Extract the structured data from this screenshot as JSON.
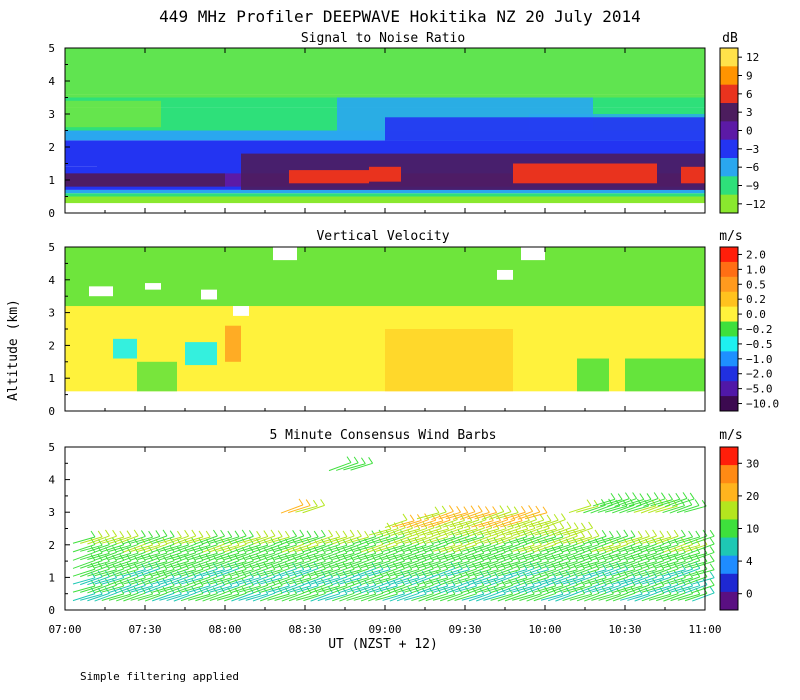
{
  "title": "449 MHz Profiler DEEPWAVE Hokitika NZ 20 July 2014",
  "ylabel": "Altitude (km)",
  "xlabel": "UT  (NZST + 12)",
  "footnote": "Simple filtering applied",
  "colors": {
    "panel_background": "#ffffff",
    "axis": "#000000"
  },
  "chart_data": [
    {
      "type": "heatmap",
      "title": "Signal to Noise Ratio",
      "units": "dB",
      "x_ticks": [
        "07:00",
        "07:30",
        "08:00",
        "08:30",
        "09:00",
        "09:30",
        "10:00",
        "10:30",
        "11:00"
      ],
      "y_ticks": [
        0,
        1,
        2,
        3,
        4,
        5
      ],
      "xlim_hours": [
        7,
        11
      ],
      "ylim_km": [
        0,
        5
      ],
      "colorbar": {
        "labels": [
          "12",
          "9",
          "6",
          "3",
          "0",
          "−3",
          "−6",
          "−9",
          "−12"
        ],
        "colors": [
          "#ffe24a",
          "#ff9400",
          "#e9331e",
          "#4c1d5e",
          "#5c1aa6",
          "#2334f2",
          "#2aa7ef",
          "#2ee07a",
          "#8ae82e"
        ]
      },
      "layers": [
        {
          "from_km": 0.3,
          "to_km": 0.5,
          "color": "#8ae82e"
        },
        {
          "from_km": 0.5,
          "to_km": 0.6,
          "color": "#2ee07a"
        },
        {
          "from_km": 0.6,
          "to_km": 0.7,
          "color": "#2aa7ef"
        },
        {
          "from_km": 0.7,
          "to_km": 1.4,
          "color": "#2334f2"
        },
        {
          "from_km": 0.8,
          "to_km": 1.2,
          "color": "#5c1aa6"
        },
        {
          "from_km": 1.4,
          "to_km": 2.2,
          "color": "#2334f2"
        },
        {
          "from_km": 2.2,
          "to_km": 2.5,
          "color": "#2aa7ef"
        },
        {
          "from_km": 2.5,
          "to_km": 3.2,
          "color": "#2ee07a"
        },
        {
          "from_km": 3.2,
          "to_km": 3.6,
          "color": "#2ee07a"
        },
        {
          "from_km": 3.6,
          "to_km": 5.0,
          "color": "#2ee07a"
        }
      ],
      "features": [
        {
          "x0": 7.0,
          "x1": 11.0,
          "y0": 3.5,
          "y1": 5.0,
          "color": "#8ae82e",
          "opacity": 0.55
        },
        {
          "x0": 7.0,
          "x1": 7.6,
          "y0": 2.6,
          "y1": 3.4,
          "color": "#8ae82e",
          "opacity": 0.6
        },
        {
          "x0": 8.7,
          "x1": 10.3,
          "y0": 2.5,
          "y1": 3.5,
          "color": "#2aa7ef",
          "opacity": 0.9
        },
        {
          "x0": 9.9,
          "x1": 11.0,
          "y0": 2.5,
          "y1": 3.0,
          "color": "#2aa7ef",
          "opacity": 0.8
        },
        {
          "x0": 9.0,
          "x1": 11.0,
          "y0": 2.2,
          "y1": 2.9,
          "color": "#2334f2",
          "opacity": 0.9
        },
        {
          "x0": 7.2,
          "x1": 11.0,
          "y0": 1.3,
          "y1": 2.0,
          "color": "#2334f2",
          "opacity": 1.0
        },
        {
          "x0": 8.1,
          "x1": 11.0,
          "y0": 0.7,
          "y1": 1.8,
          "color": "#4c1d5e",
          "opacity": 0.9
        },
        {
          "x0": 8.4,
          "x1": 8.9,
          "y0": 0.9,
          "y1": 1.3,
          "color": "#e9331e",
          "opacity": 1.0
        },
        {
          "x0": 8.9,
          "x1": 9.1,
          "y0": 0.95,
          "y1": 1.4,
          "color": "#e9331e",
          "opacity": 1.0
        },
        {
          "x0": 9.8,
          "x1": 10.7,
          "y0": 0.9,
          "y1": 1.5,
          "color": "#e9331e",
          "opacity": 1.0
        },
        {
          "x0": 10.85,
          "x1": 11.0,
          "y0": 0.9,
          "y1": 1.4,
          "color": "#e9331e",
          "opacity": 1.0
        },
        {
          "x0": 7.0,
          "x1": 8.0,
          "y0": 0.8,
          "y1": 1.2,
          "color": "#4c1d5e",
          "opacity": 0.9
        }
      ]
    },
    {
      "type": "heatmap",
      "title": "Vertical Velocity",
      "units": "m/s",
      "x_ticks": [
        "07:00",
        "07:30",
        "08:00",
        "08:30",
        "09:00",
        "09:30",
        "10:00",
        "10:30",
        "11:00"
      ],
      "y_ticks": [
        0,
        1,
        2,
        3,
        4,
        5
      ],
      "xlim_hours": [
        7,
        11
      ],
      "ylim_km": [
        0,
        5
      ],
      "colorbar": {
        "labels": [
          "2.0",
          "1.0",
          "0.5",
          "0.2",
          "0.0",
          "−0.2",
          "−0.5",
          "−1.0",
          "−2.0",
          "−5.0",
          "−10.0"
        ],
        "colors": [
          "#ff1e0a",
          "#ff6e14",
          "#ff9a1e",
          "#ffc21e",
          "#fff23c",
          "#3ee03c",
          "#1ef0f0",
          "#1e90ff",
          "#2030e0",
          "#5018a8",
          "#3c0a50"
        ]
      },
      "coverage": {
        "from_km": 0.6,
        "to_km": 5.0
      },
      "base_color": "#fff23c",
      "features": [
        {
          "x0": 7.0,
          "x1": 11.0,
          "y0": 3.2,
          "y1": 5.0,
          "color": "#3ee03c",
          "opacity": 0.75
        },
        {
          "x0": 7.3,
          "x1": 7.45,
          "y0": 1.6,
          "y1": 2.2,
          "color": "#1ef0f0",
          "opacity": 0.9
        },
        {
          "x0": 7.75,
          "x1": 7.95,
          "y0": 1.4,
          "y1": 2.1,
          "color": "#1ef0f0",
          "opacity": 0.9
        },
        {
          "x0": 8.0,
          "x1": 8.1,
          "y0": 1.5,
          "y1": 2.6,
          "color": "#ff9a1e",
          "opacity": 0.8
        },
        {
          "x0": 9.0,
          "x1": 9.8,
          "y0": 0.6,
          "y1": 2.5,
          "color": "#ffc21e",
          "opacity": 0.55
        },
        {
          "x0": 10.2,
          "x1": 10.4,
          "y0": 0.6,
          "y1": 1.6,
          "color": "#3ee03c",
          "opacity": 0.8
        },
        {
          "x0": 10.5,
          "x1": 11.0,
          "y0": 0.6,
          "y1": 1.6,
          "color": "#3ee03c",
          "opacity": 0.8
        },
        {
          "x0": 7.45,
          "x1": 7.7,
          "y0": 0.6,
          "y1": 1.5,
          "color": "#3ee03c",
          "opacity": 0.7
        }
      ],
      "gaps": [
        {
          "x0": 7.15,
          "x1": 7.3,
          "y0": 3.5,
          "y1": 3.8
        },
        {
          "x0": 7.5,
          "x1": 7.6,
          "y0": 3.7,
          "y1": 3.9
        },
        {
          "x0": 7.85,
          "x1": 7.95,
          "y0": 3.4,
          "y1": 3.7
        },
        {
          "x0": 8.05,
          "x1": 8.15,
          "y0": 2.9,
          "y1": 3.2
        },
        {
          "x0": 8.3,
          "x1": 8.45,
          "y0": 4.6,
          "y1": 5.0
        },
        {
          "x0": 9.7,
          "x1": 9.8,
          "y0": 4.0,
          "y1": 4.3
        },
        {
          "x0": 9.85,
          "x1": 10.0,
          "y0": 4.6,
          "y1": 5.0
        }
      ]
    },
    {
      "type": "scatter",
      "title": "5 Minute Consensus Wind Barbs",
      "units": "m/s",
      "x_ticks": [
        "07:00",
        "07:30",
        "08:00",
        "08:30",
        "09:00",
        "09:30",
        "10:00",
        "10:30",
        "11:00"
      ],
      "y_ticks": [
        0,
        1,
        2,
        3,
        4,
        5
      ],
      "xlim_hours": [
        7,
        11
      ],
      "ylim_km": [
        0,
        5
      ],
      "colorbar": {
        "labels": [
          "30",
          "20",
          "10",
          "4",
          "0"
        ],
        "colors": [
          "#ff1e0a",
          "#ff8a14",
          "#ffb41e",
          "#b4e61e",
          "#3ee03c",
          "#1ec8b4",
          "#1e8cff",
          "#1e28d2",
          "#5a0f82"
        ]
      },
      "barb_rows": [
        {
          "alt_km": 0.3,
          "x0": 7.05,
          "x1": 10.95,
          "speed": 9
        },
        {
          "alt_km": 0.55,
          "x0": 7.05,
          "x1": 10.95,
          "speed": 8
        },
        {
          "alt_km": 0.8,
          "x0": 7.05,
          "x1": 10.95,
          "speed": 8
        },
        {
          "alt_km": 1.05,
          "x0": 7.05,
          "x1": 10.95,
          "speed": 9
        },
        {
          "alt_km": 1.3,
          "x0": 7.05,
          "x1": 10.95,
          "speed": 10
        },
        {
          "alt_km": 1.55,
          "x0": 7.05,
          "x1": 10.95,
          "speed": 11
        },
        {
          "alt_km": 1.8,
          "x0": 7.05,
          "x1": 10.95,
          "speed": 12
        },
        {
          "alt_km": 2.05,
          "x0": 7.05,
          "x1": 10.95,
          "speed": 13
        },
        {
          "alt_km": 2.3,
          "x0": 8.9,
          "x1": 10.2,
          "speed": 15
        },
        {
          "alt_km": 2.55,
          "x0": 9.0,
          "x1": 10.0,
          "speed": 17
        },
        {
          "alt_km": 2.8,
          "x0": 9.2,
          "x1": 9.9,
          "speed": 18
        },
        {
          "alt_km": 3.0,
          "x0": 10.15,
          "x1": 10.9,
          "speed": 12
        },
        {
          "alt_km": 3.2,
          "x0": 10.3,
          "x1": 10.8,
          "speed": 11
        },
        {
          "alt_km": 3.0,
          "x0": 8.35,
          "x1": 8.5,
          "speed": 18
        },
        {
          "alt_km": 4.3,
          "x0": 8.65,
          "x1": 8.8,
          "speed": 12
        }
      ]
    }
  ]
}
